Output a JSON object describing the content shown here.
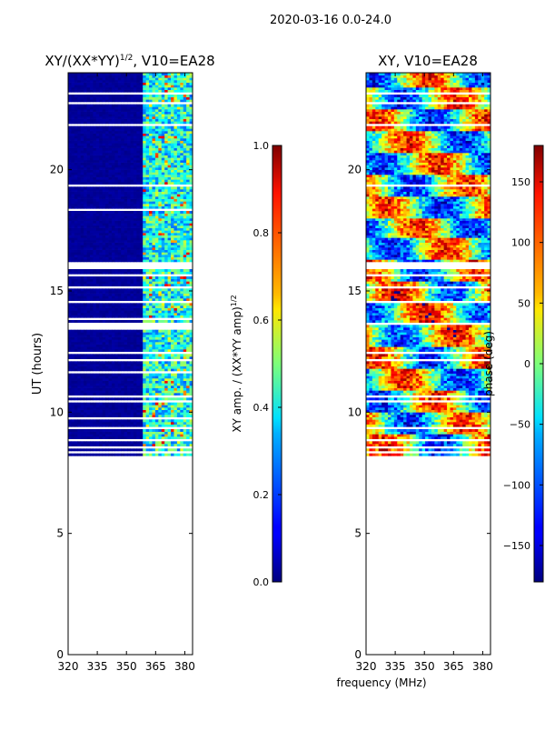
{
  "figure_title": "2020-03-16 0.0-24.0",
  "shared_xlabel": "frequency (MHz)",
  "chart_data": [
    {
      "type": "heatmap",
      "title": "XY/(XX*YY)",
      "title_sup": "1/2",
      "title_suffix": ", V10=EA28",
      "xlabel": "",
      "ylabel": "UT (hours)",
      "xlim": [
        320,
        384
      ],
      "ylim": [
        0,
        24
      ],
      "xticks": [
        320,
        335,
        350,
        365,
        380
      ],
      "yticks": [
        0,
        5,
        10,
        15,
        20
      ],
      "data_range_hours": [
        8.2,
        24.0
      ],
      "gap_hours": [
        8.25,
        8.5,
        8.8,
        9.3,
        9.7,
        10.4,
        10.6,
        11.6,
        12.1,
        12.4,
        13.6,
        13.8,
        14.5,
        15.05,
        15.6,
        16.1,
        18.05,
        18.3,
        19.35,
        21.8,
        22.7,
        23.1
      ],
      "masked_bands": [
        [
          13.3,
          13.55
        ],
        [
          15.85,
          16.15
        ]
      ],
      "colorbar": {
        "label": "XY amp. / (XX*YY amp)",
        "label_sup": "1/2",
        "range": [
          0.0,
          1.0
        ],
        "ticks": [
          "0.0",
          "0.2",
          "0.4",
          "0.6",
          "0.8",
          "1.0"
        ]
      }
    },
    {
      "type": "heatmap",
      "title": "XY, V10=EA28",
      "xlabel": "frequency (MHz)",
      "ylabel": "",
      "xlim": [
        320,
        384
      ],
      "ylim": [
        0,
        24
      ],
      "xticks": [
        320,
        335,
        350,
        365,
        380
      ],
      "yticks": [
        0,
        5,
        10,
        15,
        20
      ],
      "data_range_hours": [
        8.2,
        24.0
      ],
      "gap_hours": [
        8.25,
        8.5,
        8.8,
        9.3,
        10.4,
        10.6,
        12.1,
        12.4,
        13.6,
        14.5,
        15.05,
        15.6,
        16.1,
        18.05,
        19.35,
        21.8,
        22.7,
        23.1
      ],
      "masked_bands": [
        [
          15.85,
          16.15
        ]
      ],
      "colorbar": {
        "label": "phase (deg)",
        "range": [
          -180,
          180
        ],
        "ticks": [
          "−150",
          "−100",
          "−50",
          "0",
          "50",
          "100",
          "150"
        ]
      }
    }
  ]
}
